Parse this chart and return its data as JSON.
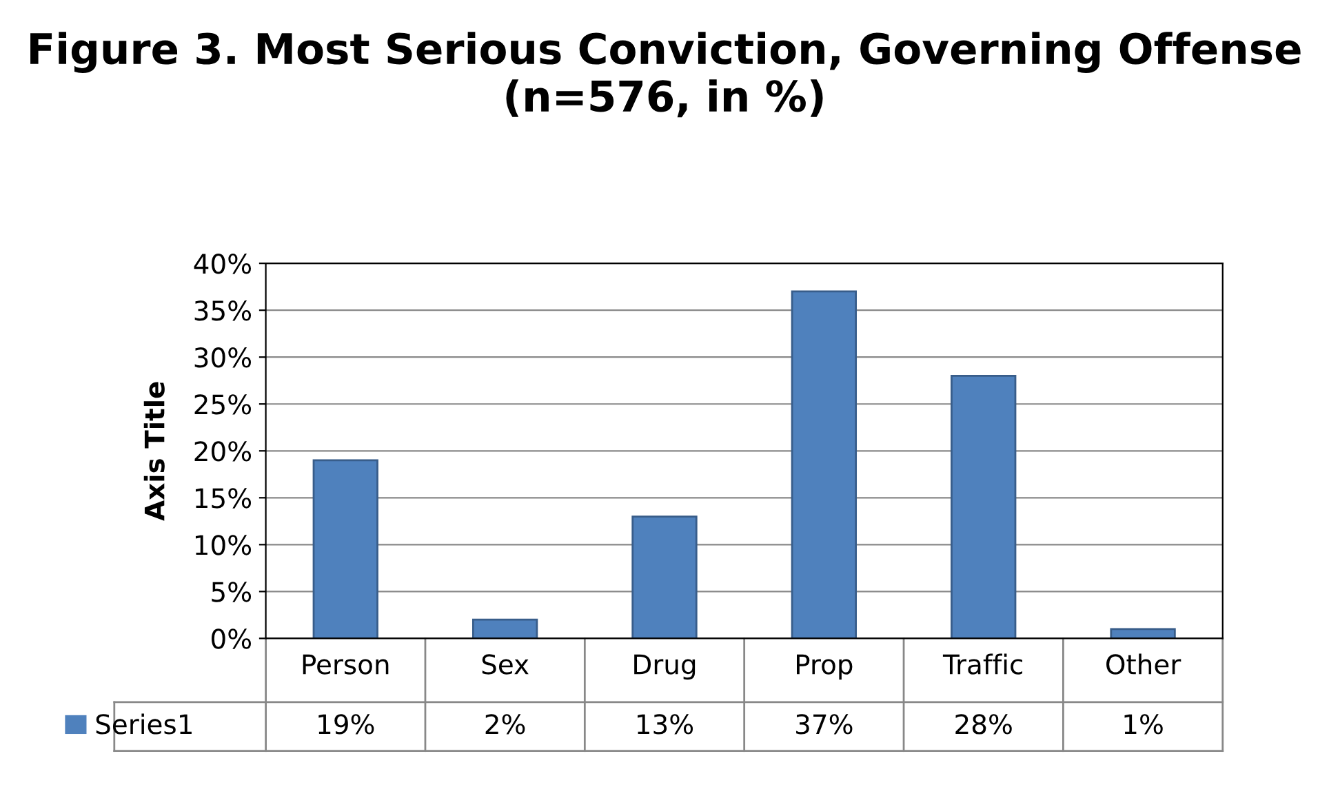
{
  "chart_data": {
    "type": "bar",
    "title": "Figure 3. Most Serious Conviction, Governing Offense (n=576, in %)",
    "ylabel": "Axis Title",
    "categories": [
      "Person",
      "Sex",
      "Drug",
      "Prop",
      "Traffic",
      "Other"
    ],
    "series": [
      {
        "name": "Series1",
        "color": "#4f81bd",
        "values": [
          19,
          2,
          13,
          37,
          28,
          1
        ],
        "value_labels": [
          "19%",
          "2%",
          "13%",
          "37%",
          "28%",
          "1%"
        ]
      }
    ],
    "ylim": [
      0,
      40
    ],
    "yticks": [
      {
        "value": 0,
        "label": "0%"
      },
      {
        "value": 5,
        "label": "5%"
      },
      {
        "value": 10,
        "label": "10%"
      },
      {
        "value": 15,
        "label": "15%"
      },
      {
        "value": 20,
        "label": "20%"
      },
      {
        "value": 25,
        "label": "25%"
      },
      {
        "value": 30,
        "label": "30%"
      },
      {
        "value": 35,
        "label": "35%"
      },
      {
        "value": 40,
        "label": "40%"
      }
    ],
    "grid": "y",
    "legend": "bottom left"
  }
}
